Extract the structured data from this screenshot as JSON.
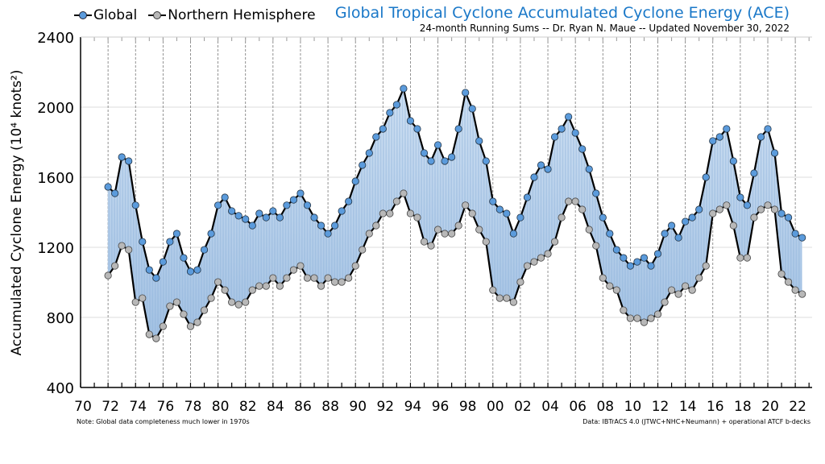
{
  "chart_data": {
    "type": "line",
    "title": "Global Tropical Cyclone Accumulated Cyclone Energy (ACE)",
    "subtitle": "24-month Running Sums -- Dr. Ryan N. Maue -- Updated November 30, 2022",
    "ylabel": "Accumulated Cyclone Energy (10⁴ knots²)",
    "xlabel": "",
    "ylim": [
      400,
      2400
    ],
    "xlim": [
      1970,
      2023
    ],
    "y_ticks": [
      "400",
      "800",
      "1200",
      "1600",
      "2000",
      "2400"
    ],
    "x_ticks": [
      "70",
      "72",
      "74",
      "76",
      "78",
      "80",
      "82",
      "84",
      "86",
      "88",
      "90",
      "92",
      "94",
      "96",
      "98",
      "00",
      "02",
      "04",
      "06",
      "08",
      "10",
      "12",
      "14",
      "16",
      "18",
      "20",
      "22"
    ],
    "grid": "horizontal solid; vertical dashed every 2 years",
    "legend": "top-left",
    "note": "Note:  Global data completeness much lower in 1970s",
    "source": "Data: IBTrACS 4.0 (JTWC+NHC+Neumann) + operational ATCF b-decks",
    "x": [
      1972,
      1972.5,
      1973,
      1973.5,
      1974,
      1974.5,
      1975,
      1975.5,
      1976,
      1976.5,
      1977,
      1977.5,
      1978,
      1978.5,
      1979,
      1979.5,
      1980,
      1980.5,
      1981,
      1981.5,
      1982,
      1982.5,
      1983,
      1983.5,
      1984,
      1984.5,
      1985,
      1985.5,
      1986,
      1986.5,
      1987,
      1987.5,
      1988,
      1988.5,
      1989,
      1989.5,
      1990,
      1990.5,
      1991,
      1991.5,
      1992,
      1992.5,
      1993,
      1993.5,
      1994,
      1994.5,
      1995,
      1995.5,
      1996,
      1996.5,
      1997,
      1997.5,
      1998,
      1998.5,
      1999,
      1999.5,
      2000,
      2000.5,
      2001,
      2001.5,
      2002,
      2002.5,
      2003,
      2003.5,
      2004,
      2004.5,
      2005,
      2005.5,
      2006,
      2006.5,
      2007,
      2007.5,
      2008,
      2008.5,
      2009,
      2009.5,
      2010,
      2010.5,
      2011,
      2011.5,
      2012,
      2012.5,
      2013,
      2013.5,
      2014,
      2014.5,
      2015,
      2015.5,
      2016,
      2016.5,
      2017,
      2017.5,
      2018,
      2018.5,
      2019,
      2019.5,
      2020,
      2020.5,
      2021,
      2021.5,
      2022,
      2022.5
    ],
    "series": [
      {
        "name": "Global",
        "color": "#5b9bdc",
        "values": [
          1545,
          1508,
          1715,
          1692,
          1440,
          1232,
          1071,
          1025,
          1117,
          1232,
          1278,
          1140,
          1062,
          1071,
          1186,
          1278,
          1440,
          1485,
          1407,
          1380,
          1361,
          1324,
          1393,
          1370,
          1407,
          1370,
          1440,
          1471,
          1508,
          1440,
          1370,
          1324,
          1278,
          1324,
          1407,
          1462,
          1577,
          1669,
          1738,
          1830,
          1876,
          1968,
          2014,
          2106,
          1922,
          1876,
          1738,
          1692,
          1784,
          1692,
          1715,
          1876,
          2083,
          1991,
          1807,
          1692,
          1462,
          1416,
          1393,
          1278,
          1370,
          1485,
          1600,
          1669,
          1646,
          1830,
          1876,
          1945,
          1853,
          1761,
          1646,
          1508,
          1370,
          1278,
          1186,
          1140,
          1094,
          1117,
          1140,
          1094,
          1163,
          1278,
          1324,
          1255,
          1347,
          1370,
          1416,
          1600,
          1807,
          1830,
          1876,
          1692,
          1485,
          1440,
          1623,
          1830,
          1876,
          1738,
          1393,
          1370,
          1278,
          1255
        ]
      },
      {
        "name": "Northern Hemisphere",
        "color": "#b8b8b8",
        "values": [
          1039,
          1094,
          1209,
          1186,
          887,
          910,
          703,
          680,
          749,
          864,
          887,
          818,
          749,
          772,
          841,
          910,
          1002,
          956,
          887,
          873,
          887,
          956,
          979,
          979,
          1025,
          979,
          1025,
          1071,
          1094,
          1025,
          1025,
          979,
          1025,
          1002,
          1002,
          1025,
          1094,
          1186,
          1278,
          1324,
          1393,
          1393,
          1462,
          1508,
          1393,
          1370,
          1232,
          1209,
          1301,
          1278,
          1278,
          1324,
          1440,
          1393,
          1301,
          1232,
          956,
          910,
          910,
          887,
          1002,
          1094,
          1117,
          1140,
          1163,
          1232,
          1370,
          1462,
          1462,
          1416,
          1301,
          1209,
          1025,
          979,
          956,
          841,
          795,
          795,
          772,
          795,
          818,
          887,
          956,
          933,
          979,
          956,
          1025,
          1094,
          1393,
          1416,
          1440,
          1324,
          1140,
          1140,
          1370,
          1416,
          1440,
          1416,
          1048,
          1002,
          956,
          933
        ]
      }
    ]
  }
}
